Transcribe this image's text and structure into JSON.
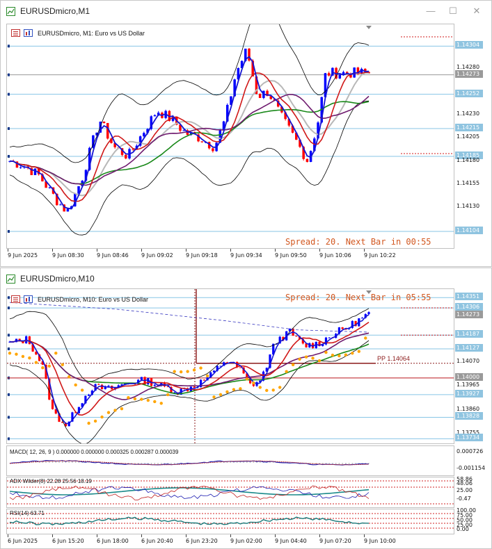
{
  "window1": {
    "title": "EURUSDmicro,M1",
    "chart_label": "EURUSDmicro, M1:  Euro vs US Dollar",
    "spread_text": "Spread: 20. Next Bar in 00:55",
    "price_labels": [
      "1.14304",
      "1.14280",
      "1.14273",
      "1.14252",
      "1.14230",
      "1.14215",
      "1.14205",
      "1.14185",
      "1.14180",
      "1.14155",
      "1.14130",
      "1.14104"
    ],
    "time_labels": [
      "9 Jun 2025",
      "9 Jun 08:30",
      "9 Jun 08:46",
      "9 Jun 09:02",
      "9 Jun 09:18",
      "9 Jun 09:34",
      "9 Jun 09:50",
      "9 Jun 10:06",
      "9 Jun 10:22"
    ]
  },
  "window2": {
    "title": "EURUSDmicro,M10",
    "chart_label": "EURUSDmicro, M10:  Euro vs US Dollar",
    "spread_text": "Spread: 20. Next Bar in 05:55",
    "pp_label": "PP 1.14064",
    "price_labels": [
      "1.14351",
      "1.14306",
      "1.14273",
      "1.14187",
      "1.14127",
      "1.14070",
      "1.14000",
      "1.13965",
      "1.13927",
      "1.13860",
      "1.13828",
      "1.13755",
      "1.13734"
    ],
    "macd_label": "MACD( 12, 26, 9 ) 0.000000 0.000000 0.000325 0.000287 0.000039",
    "macd_scale": [
      "0.000726",
      "-0.001154"
    ],
    "adx_label": "ADX Wilder(8) 22.28 25.56 18.19",
    "adx_scale": [
      "58.86",
      "48.06",
      "25.00",
      "-0.47"
    ],
    "rsi_label": "RSI(14) 63.71",
    "rsi_scale": [
      "100.00",
      "75.00",
      "50.00",
      "25.00",
      "0.00"
    ],
    "time_labels": [
      "6 Jun 2025",
      "6 Jun 15:20",
      "6 Jun 18:00",
      "6 Jun 20:40",
      "6 Jun 23:20",
      "9 Jun 02:00",
      "9 Jun 04:40",
      "9 Jun 07:20",
      "9 Jun 10:00"
    ]
  },
  "colors": {
    "bull": "#0000ff",
    "bear": "#ff0000",
    "bands": "#000000",
    "ma_fast": "#1414d2",
    "ma_red": "#d01818",
    "ma_purple": "#6e1a6e",
    "ma_green": "#188818",
    "ma_gray": "#b8b8b8",
    "psar": "#ffa500",
    "level": "#87c5e6",
    "spread": "#d2571f"
  }
}
